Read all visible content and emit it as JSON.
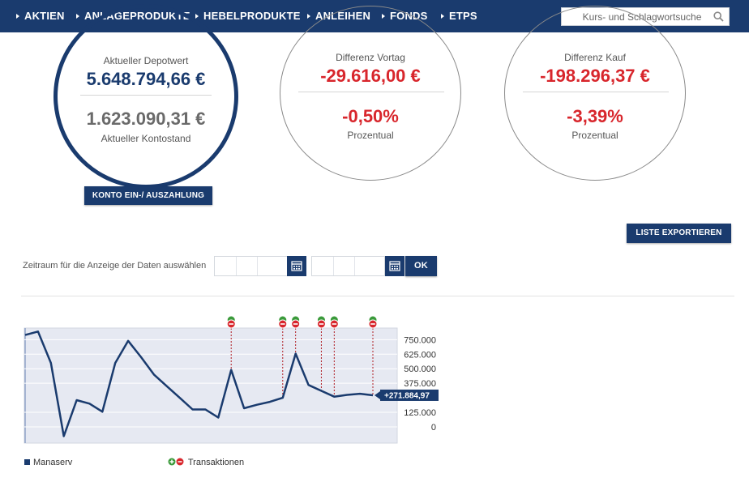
{
  "nav": {
    "items": [
      "AKTIEN",
      "ANLAGEPRODUKTE",
      "HEBELPRODUKTE",
      "ANLEIHEN",
      "FONDS",
      "ETPS"
    ],
    "search_placeholder": "Kurs- und Schlagwortsuche"
  },
  "summary": {
    "depot": {
      "label": "Aktueller Depotwert",
      "value": "5.648.794,66 €",
      "konto_value": "1.623.090,31 €",
      "konto_label": "Aktueller Kontostand"
    },
    "vortag": {
      "label": "Differenz Vortag",
      "value": "-29.616,00 €",
      "percent": "-0,50%",
      "percent_label": "Prozentual"
    },
    "kauf": {
      "label": "Differenz Kauf",
      "value": "-198.296,37 €",
      "percent": "-3,39%",
      "percent_label": "Prozentual"
    }
  },
  "buttons": {
    "konto": "KONTO EIN-/ AUSZAHLUNG",
    "export": "LISTE EXPORTIEREN",
    "ok": "OK"
  },
  "date_filter": {
    "label": "Zeitraum für die Anzeige der Daten auswählen"
  },
  "colors": {
    "navy": "#1a3b6e",
    "red": "#d8262c",
    "green": "#3a9a3a",
    "plot_bg": "#e6e9f2"
  },
  "chart_data": {
    "type": "line",
    "y_ticks": [
      "750.000",
      "625.000",
      "500.000",
      "375.000",
      "125.000",
      "0"
    ],
    "y_tick_values": [
      750000,
      625000,
      500000,
      375000,
      125000,
      0
    ],
    "ylim": [
      0,
      850000
    ],
    "series": [
      {
        "name": "Manaserv",
        "values": [
          790000,
          820000,
          550000,
          -80000,
          230000,
          200000,
          130000,
          550000,
          740000,
          600000,
          450000,
          350000,
          250000,
          150000,
          150000,
          80000,
          490000,
          160000,
          190000,
          215000,
          250000,
          630000,
          360000,
          310000,
          260000,
          275000,
          285000,
          272000
        ]
      }
    ],
    "last_value_label": "+271.884,97",
    "transactions": [
      17,
      21,
      22,
      24,
      25,
      28
    ],
    "legend": {
      "series": "Manaserv",
      "transactions": "Transaktionen"
    }
  }
}
